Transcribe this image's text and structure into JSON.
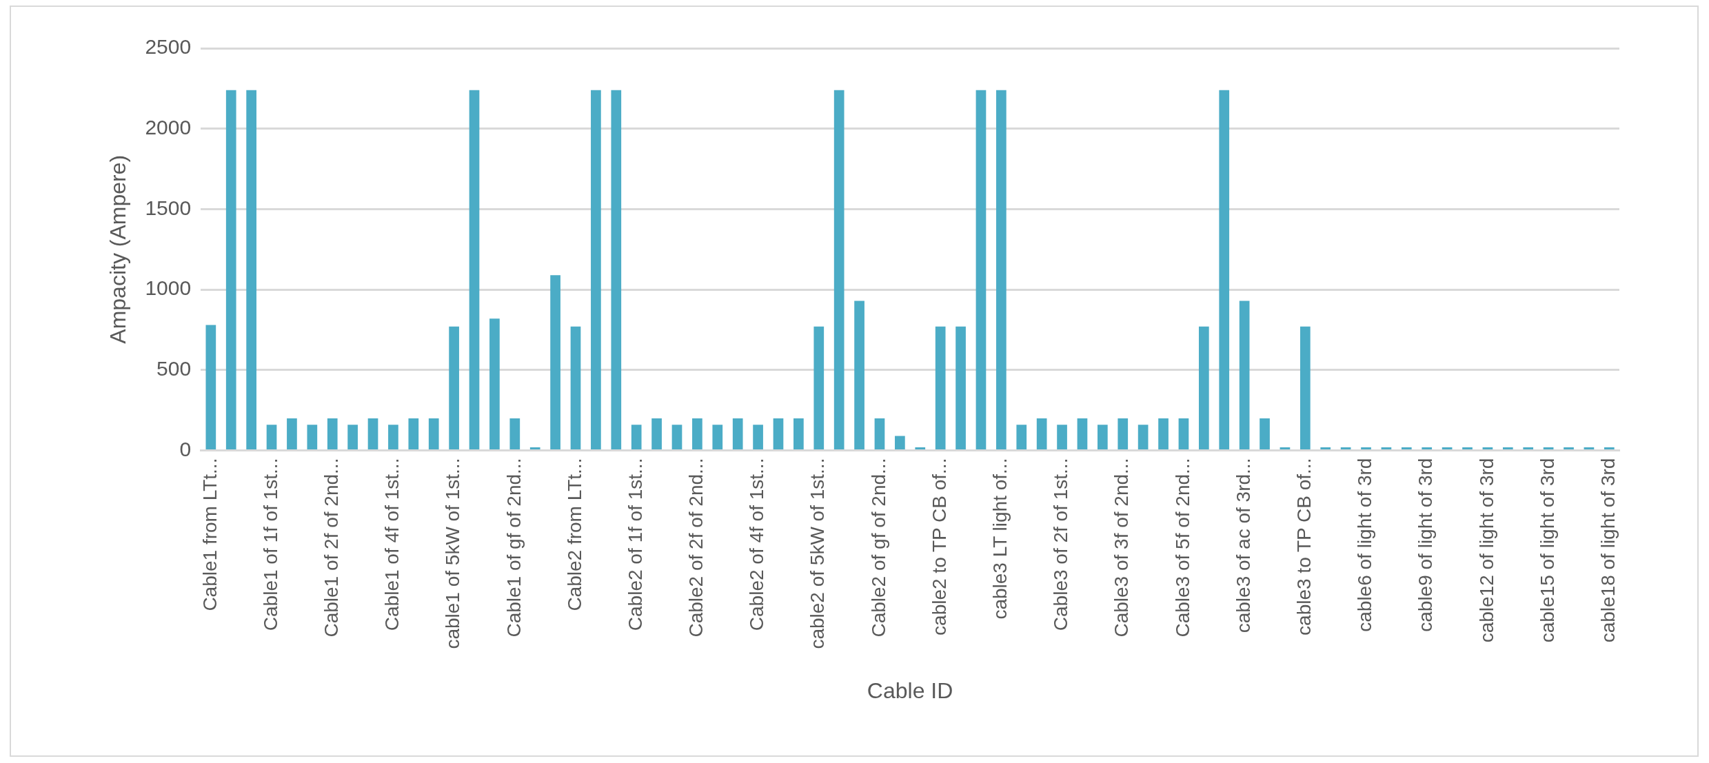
{
  "chart_data": {
    "type": "bar",
    "xlabel": "Cable ID",
    "ylabel": "Ampacity (Ampere)",
    "categories": [
      "Cable1 from LTt...",
      null,
      null,
      "Cable1 of 1f of 1st...",
      null,
      null,
      "Cable1 of 2f of 2nd...",
      null,
      null,
      "Cable1 of 4f of 1st...",
      null,
      null,
      "cable1 of 5kW of 1st...",
      null,
      null,
      "Cable1 of gf of 2nd...",
      null,
      null,
      "Cable2 from LTt...",
      null,
      null,
      "Cable2 of 1f of 1st...",
      null,
      null,
      "Cable2 of 2f of 2nd...",
      null,
      null,
      "Cable2 of 4f of 1st...",
      null,
      null,
      "cable2 of 5kW of 1st...",
      null,
      null,
      "Cable2 of gf of 2nd...",
      null,
      null,
      "cable2 to TP CB of...",
      null,
      null,
      "cable3 LT light of...",
      null,
      null,
      "Cable3 of 2f of 1st...",
      null,
      null,
      "Cable3 of 3f of 2nd...",
      null,
      null,
      "Cable3 of 5f of 2nd...",
      null,
      null,
      "cable3 of ac of 3rd...",
      null,
      null,
      "cable3 to TP CB of...",
      null,
      null,
      "cable6 of light of 3rd",
      null,
      null,
      "cable9 of light of 3rd",
      null,
      null,
      "cable12 of light of 3rd",
      null,
      null,
      "cable15 of light of 3rd",
      null,
      null,
      "cable18 of light of 3rd"
    ],
    "values": [
      780,
      2240,
      2240,
      160,
      200,
      160,
      200,
      160,
      200,
      160,
      200,
      200,
      770,
      2240,
      820,
      200,
      20,
      1090,
      770,
      2240,
      2240,
      160,
      200,
      160,
      200,
      160,
      200,
      160,
      200,
      200,
      770,
      2240,
      930,
      200,
      90,
      20,
      770,
      770,
      2240,
      2240,
      160,
      200,
      160,
      200,
      160,
      200,
      160,
      200,
      200,
      770,
      2240,
      930,
      200,
      20,
      770,
      20,
      20,
      20,
      20,
      20,
      20,
      20,
      20,
      20,
      20,
      20,
      20,
      20,
      20,
      20
    ],
    "color": "#4bacc6",
    "ylim": [
      0,
      2500
    ],
    "yticks": [
      0,
      500,
      1000,
      1500,
      2000,
      2500
    ],
    "grid": "y",
    "legend": false
  }
}
